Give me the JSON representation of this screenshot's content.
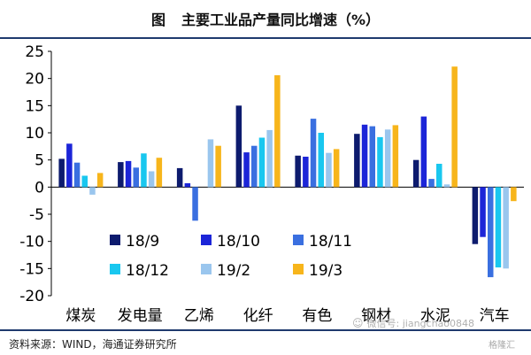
{
  "header": {
    "fig_label": "图",
    "title": "主要工业品产量同比增速（%）"
  },
  "footer": {
    "source": "资料来源：WIND，海通证券研究所"
  },
  "watermark": {
    "text": "微信号: jiangchao0848",
    "brand": "格隆汇"
  },
  "chart_data": {
    "type": "bar",
    "title": "主要工业品产量同比增速（%）",
    "categories": [
      "煤炭",
      "发电量",
      "乙烯",
      "化纤",
      "有色",
      "钢材",
      "水泥",
      "汽车"
    ],
    "ylim": [
      -20,
      25
    ],
    "yticks": [
      -20,
      -15,
      -10,
      -5,
      0,
      5,
      10,
      15,
      20,
      25
    ],
    "grid": false,
    "legend_position": "bottom-center",
    "series": [
      {
        "name": "18/9",
        "color": "#0d1b6e",
        "values": [
          5.2,
          4.6,
          3.5,
          15.0,
          5.8,
          9.8,
          5.0,
          -10.5
        ]
      },
      {
        "name": "18/10",
        "color": "#1c25d8",
        "values": [
          8.0,
          4.8,
          0.7,
          6.4,
          5.6,
          11.5,
          13.0,
          -9.2
        ]
      },
      {
        "name": "18/11",
        "color": "#3a6fe0",
        "values": [
          4.5,
          3.6,
          -6.2,
          7.6,
          12.6,
          11.2,
          1.5,
          -16.6
        ]
      },
      {
        "name": "18/12",
        "color": "#19c7ef",
        "values": [
          2.1,
          6.2,
          0,
          9.1,
          10.0,
          9.2,
          4.3,
          -14.8
        ]
      },
      {
        "name": "19/2",
        "color": "#9ac6ee",
        "values": [
          -1.4,
          2.9,
          8.8,
          10.5,
          6.3,
          10.6,
          0.5,
          -15.0
        ]
      },
      {
        "name": "19/3",
        "color": "#f7b51b",
        "values": [
          2.6,
          5.4,
          7.6,
          20.6,
          7.0,
          11.4,
          22.2,
          -2.6
        ]
      }
    ]
  }
}
